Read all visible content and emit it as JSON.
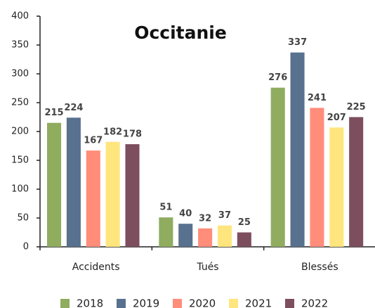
{
  "chart_data": {
    "type": "bar",
    "title": "Occitanie",
    "categories": [
      "Accidents",
      "Tués",
      "Blessés"
    ],
    "series": [
      {
        "name": "2018",
        "color": "#8fac5f",
        "values": [
          215,
          51,
          276
        ]
      },
      {
        "name": "2019",
        "color": "#57718f",
        "values": [
          224,
          40,
          337
        ]
      },
      {
        "name": "2020",
        "color": "#ff8d7a",
        "values": [
          167,
          32,
          241
        ]
      },
      {
        "name": "2021",
        "color": "#ffe57d",
        "values": [
          182,
          37,
          207
        ]
      },
      {
        "name": "2022",
        "color": "#7d4e5e",
        "values": [
          178,
          25,
          225
        ]
      }
    ],
    "ylim": [
      0,
      400
    ],
    "yticks": [
      0,
      50,
      100,
      150,
      200,
      250,
      300,
      350,
      400
    ],
    "grid": false,
    "legend": "bottom"
  }
}
